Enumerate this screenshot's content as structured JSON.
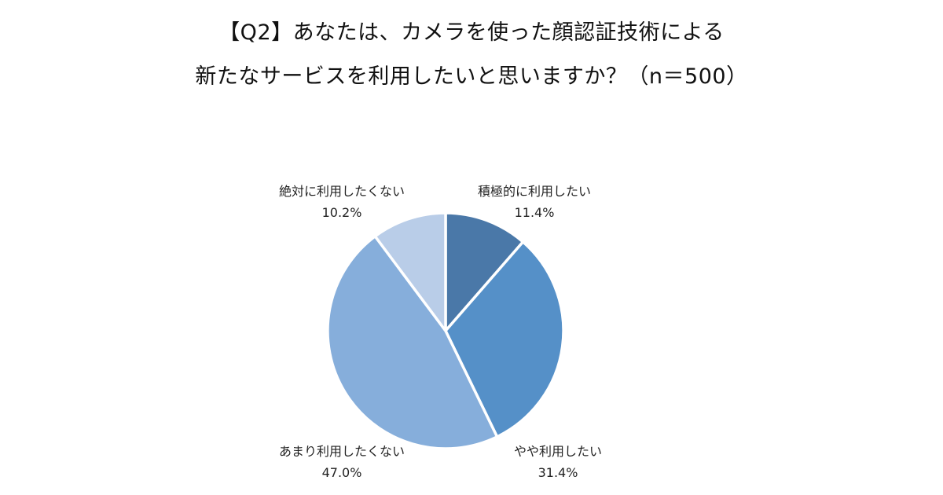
{
  "chart": {
    "title_line1": "【Q2】あなたは、カメラを使った顔認証技術による",
    "title_line2": "新たなサービスを利用したいと思いますか？（n＝500）"
  },
  "chart_data": {
    "type": "pie",
    "title": "【Q2】あなたは、カメラを使った顔認証技術による新たなサービスを利用したいと思いますか？（n＝500）",
    "slices": [
      {
        "label": "積極的に利用したい",
        "value": 11.4,
        "value_label": "11.4%",
        "color": "#4a78a8"
      },
      {
        "label": "やや利用したい",
        "value": 31.4,
        "value_label": "31.4%",
        "color": "#5590c8"
      },
      {
        "label": "あまり利用したくない",
        "value": 47.0,
        "value_label": "47.0%",
        "color": "#86aedb"
      },
      {
        "label": "絶対に利用したくない",
        "value": 10.2,
        "value_label": "10.2%",
        "color": "#b9cde8"
      }
    ]
  }
}
